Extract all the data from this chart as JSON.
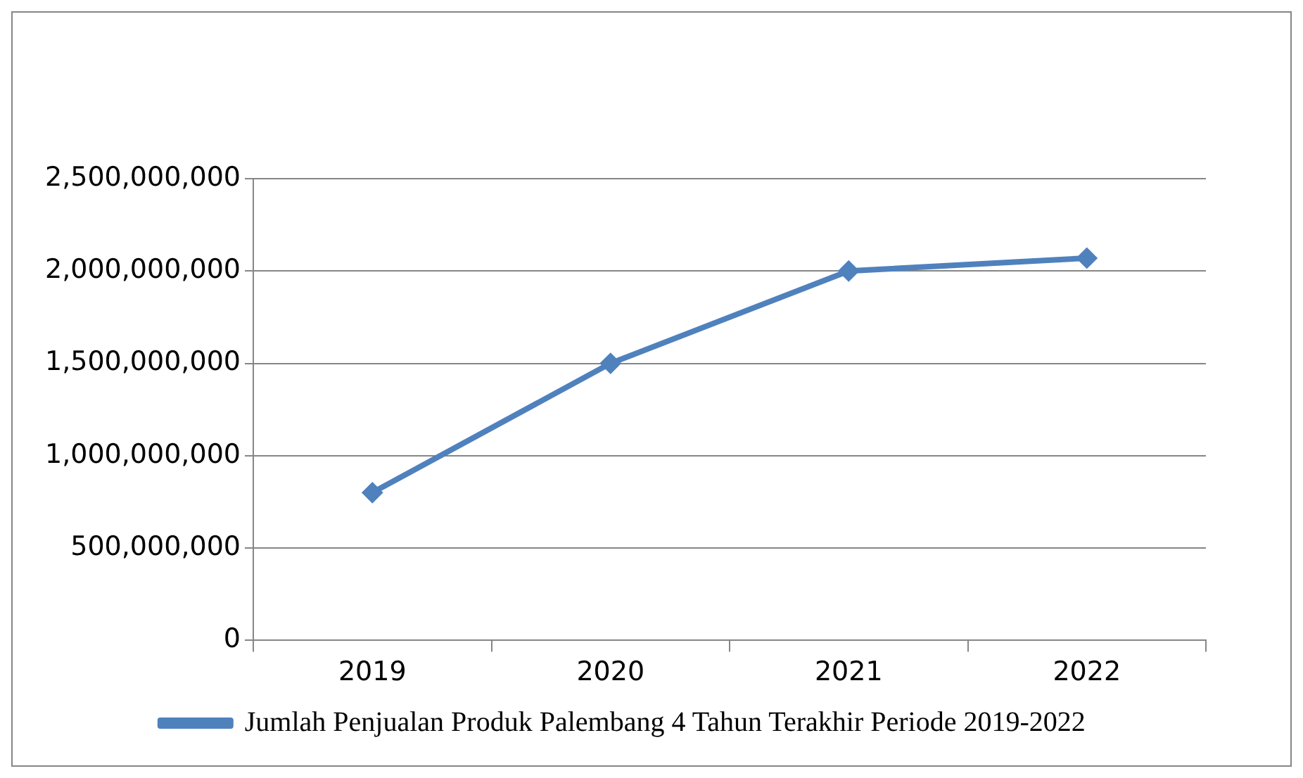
{
  "chart_data": {
    "type": "line",
    "categories": [
      "2019",
      "2020",
      "2021",
      "2022"
    ],
    "series": [
      {
        "name": "Jumlah Penjualan Produk Palembang 4 Tahun Terakhir Periode 2019-2022",
        "color": "#4f81bd",
        "values": [
          800000000,
          1500000000,
          2000000000,
          2070000000
        ]
      }
    ],
    "ylim": [
      0,
      2500000000
    ],
    "yticks": [
      0,
      {
        "value": 500000000,
        "label": "500,000,000"
      },
      {
        "value": 1000000000,
        "label": "1,000,000,000"
      },
      {
        "value": 1500000000,
        "label": "1,500,000,000"
      },
      {
        "value": 2000000000,
        "label": "2,000,000,000"
      },
      {
        "value": 2500000000,
        "label": "2,500,000,000"
      }
    ],
    "grid": "y",
    "legend": "bottom",
    "marker": "diamond",
    "line_style": "solid"
  }
}
